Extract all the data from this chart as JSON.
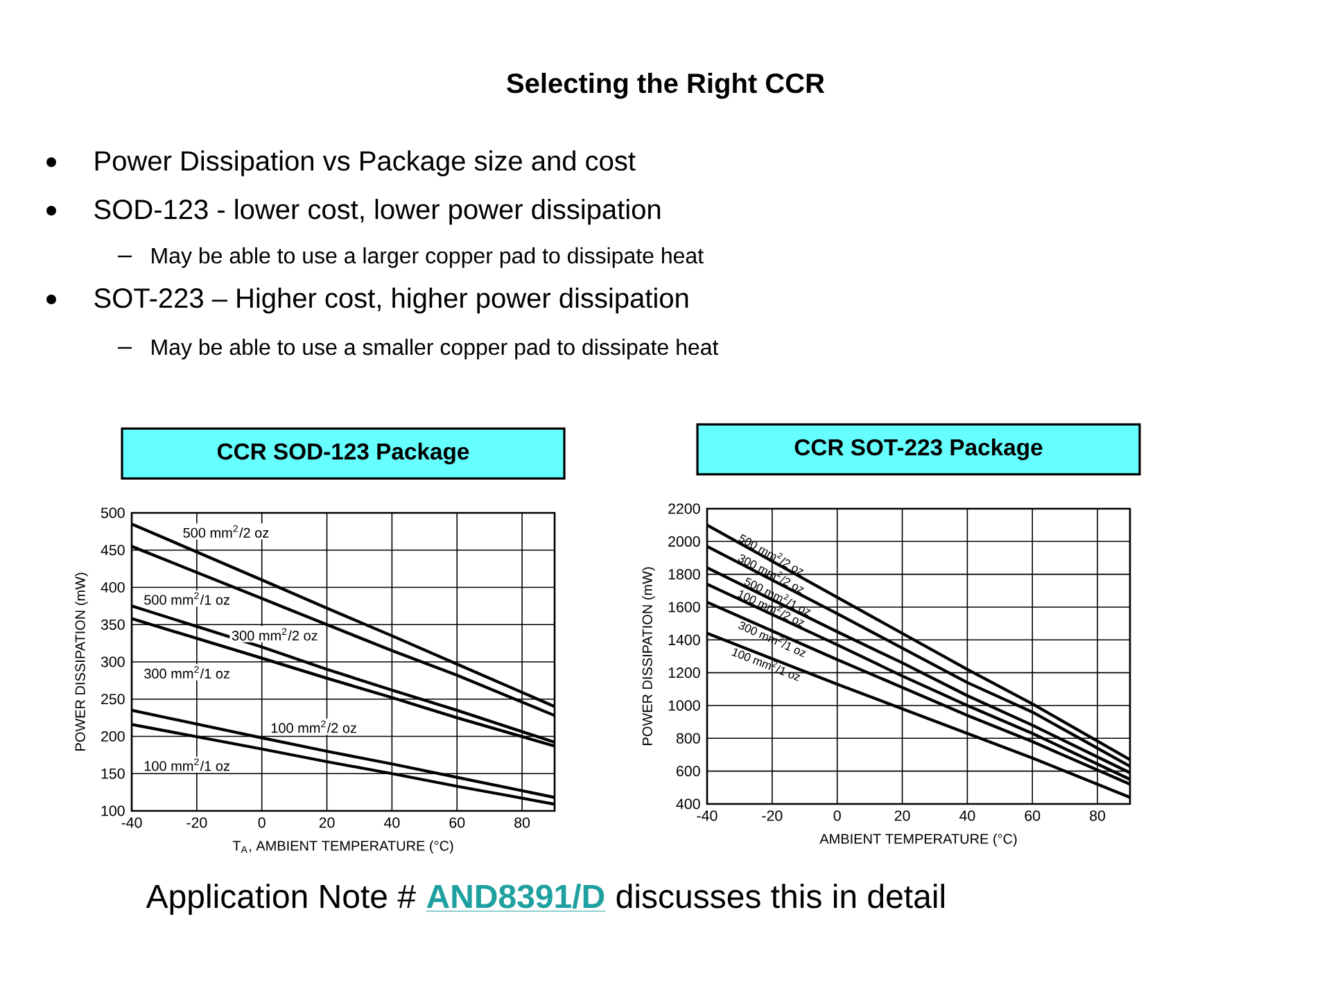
{
  "chart_data": [
    {
      "type": "other",
      "title": "Selecting the Right CCR",
      "annotations": [
        "Power Dissipation vs Package size and cost",
        "SOD-123 - lower cost, lower power dissipation",
        "May be able to use a larger copper pad to dissipate heat",
        "SOT-223 – Higher cost, higher power dissipation",
        "May be able to use a smaller copper pad to dissipate heat",
        "Application Note #",
        "AND8391/D",
        "discusses this in detail"
      ]
    },
    {
      "type": "line",
      "title": "CCR SOD-123 Package",
      "xlabel": "T$_{A}$, AMBIENT TEMPERATURE (°C)",
      "ylabel": "POWER DISSIPATION (mW)",
      "x": [
        -40,
        0,
        20,
        40,
        60,
        90
      ],
      "xlim": [
        -40,
        90
      ],
      "xticks": [
        -40,
        -20,
        0,
        20,
        40,
        60,
        80
      ],
      "ylim": [
        100,
        500
      ],
      "yticks": [
        100,
        150,
        200,
        250,
        300,
        350,
        400,
        450,
        500
      ],
      "grid": true,
      "series": [
        {
          "name": "500 mm$^{2}$/2 oz",
          "color": "#000000",
          "values": [
            485,
            410,
            372,
            335,
            297,
            240
          ]
        },
        {
          "name": "500 mm$^{2}$/1 oz",
          "color": "#000000",
          "values": [
            455,
            385,
            350,
            315,
            282,
            228
          ]
        },
        {
          "name": "300 mm$^{2}$/2 oz",
          "color": "#000000",
          "values": [
            375,
            320,
            290,
            262,
            235,
            192
          ]
        },
        {
          "name": "300 mm$^{2}$/1 oz",
          "color": "#000000",
          "values": [
            358,
            305,
            278,
            252,
            225,
            187
          ]
        },
        {
          "name": "100 mm$^{2}$/2 oz",
          "color": "#000000",
          "values": [
            235,
            198,
            180,
            163,
            145,
            118
          ]
        },
        {
          "name": "100 mm$^{2}$/1 oz",
          "color": "#000000",
          "values": [
            216,
            183,
            166,
            150,
            133,
            109
          ]
        }
      ]
    },
    {
      "type": "line",
      "title": "CCR SOT-223 Package",
      "xlabel": "AMBIENT TEMPERATURE (°C)",
      "ylabel": "POWER DISSIPATION (mW)",
      "x": [
        -40,
        0,
        20,
        40,
        60,
        90
      ],
      "xlim": [
        -40,
        90
      ],
      "xticks": [
        -40,
        -20,
        0,
        20,
        40,
        60,
        80
      ],
      "ylim": [
        400,
        2200
      ],
      "yticks": [
        400,
        600,
        800,
        1000,
        1200,
        1400,
        1600,
        1800,
        2000,
        2200
      ],
      "grid": true,
      "series": [
        {
          "name": "500 mm$^{2}$/2 oz",
          "color": "#000000",
          "values": [
            2100,
            1660,
            1440,
            1220,
            1010,
            670
          ]
        },
        {
          "name": "300 mm$^{2}$/2 oz",
          "color": "#000000",
          "values": [
            1970,
            1560,
            1350,
            1140,
            960,
            630
          ]
        },
        {
          "name": "500 mm$^{2}$/1 oz",
          "color": "#000000",
          "values": [
            1840,
            1450,
            1260,
            1060,
            880,
            590
          ]
        },
        {
          "name": "100 mm$^{2}$/2 oz",
          "color": "#000000",
          "values": [
            1740,
            1370,
            1180,
            1000,
            830,
            550
          ]
        },
        {
          "name": "300 mm$^{2}$/1 oz",
          "color": "#000000",
          "values": [
            1630,
            1280,
            1110,
            940,
            780,
            520
          ]
        },
        {
          "name": "100 mm$^{2}$/1 oz",
          "color": "#000000",
          "values": [
            1440,
            1130,
            980,
            830,
            680,
            440
          ]
        }
      ]
    }
  ]
}
